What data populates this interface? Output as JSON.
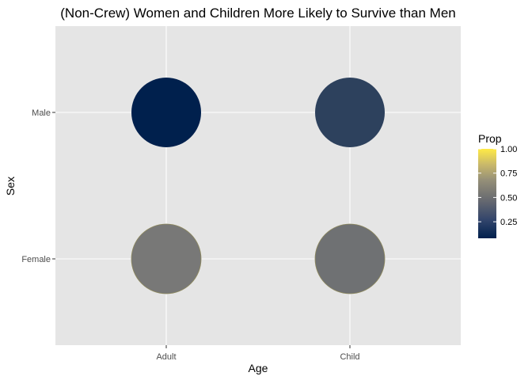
{
  "chart_data": {
    "type": "scatter",
    "title": "(Non-Crew) Women and Children More Likely to Survive than Men",
    "xlabel": "Age",
    "ylabel": "Sex",
    "x_categories": [
      "Adult",
      "Child"
    ],
    "y_categories": [
      "Female",
      "Male"
    ],
    "points": [
      {
        "x": "Adult",
        "y": "Male",
        "prop": 0.08
      },
      {
        "x": "Child",
        "y": "Male",
        "prop": 0.23
      },
      {
        "x": "Adult",
        "y": "Female",
        "prop": 0.48
      },
      {
        "x": "Child",
        "y": "Female",
        "prop": 0.45
      }
    ],
    "legend": {
      "title": "Prop",
      "placement": "right",
      "ticks": [
        1.0,
        0.75,
        0.5,
        0.25
      ],
      "tick_labels": [
        "1.00",
        "0.75",
        "0.50",
        "0.25"
      ],
      "range": [
        0.08,
        1.0
      ]
    },
    "grid": true,
    "colors": {
      "panel_background": "#e5e5e5",
      "grid": "#ffffff",
      "low": "#00204d",
      "mid": "#7c7b78",
      "high": "#ffea46"
    }
  }
}
